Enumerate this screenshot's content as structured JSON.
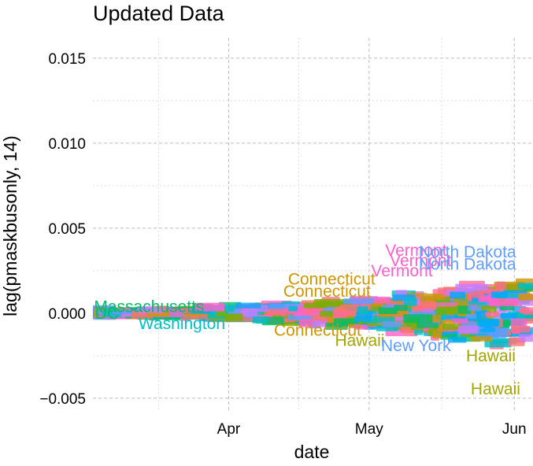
{
  "chart_data": {
    "type": "scatter",
    "title": "Updated Data",
    "xlabel": "date",
    "ylabel": "lag(pmaskbusonly, 14)",
    "x_range": [
      "2020-03-03",
      "2020-06-05"
    ],
    "x_ticks": [
      {
        "date": "2020-04-01",
        "label": "Apr"
      },
      {
        "date": "2020-05-01",
        "label": "May"
      },
      {
        "date": "2020-06-01",
        "label": "Jun"
      }
    ],
    "ylim": [
      -0.0057,
      0.0162
    ],
    "y_ticks": [
      {
        "value": 0.015,
        "label": "0.015"
      },
      {
        "value": 0.01,
        "label": "0.010"
      },
      {
        "value": 0.005,
        "label": "0.005"
      },
      {
        "value": 0.0,
        "label": "0.000"
      },
      {
        "value": -0.005,
        "label": "−0.005"
      }
    ],
    "grid": "dashed",
    "legend": "none",
    "series_colors": [
      "#F8766D",
      "#CD9600",
      "#7CAE00",
      "#00BE67",
      "#00BFC4",
      "#00A9FF",
      "#619CFF",
      "#C77CFF",
      "#FF61CC",
      "#FF6C91"
    ],
    "labels": [
      {
        "text": "Hawaii",
        "date": "2020-05-28",
        "value": -0.00445,
        "color": "#A3A500"
      },
      {
        "text": "Hawaii",
        "date": "2020-05-27",
        "value": -0.0025,
        "color": "#A3A500"
      },
      {
        "text": "Hawaii",
        "date": "2020-04-29",
        "value": -0.0016,
        "color": "#A3A500"
      },
      {
        "text": "Connecticut",
        "date": "2020-04-23",
        "value": 0.002,
        "color": "#CD9600"
      },
      {
        "text": "Connecticut",
        "date": "2020-04-22",
        "value": 0.0013,
        "color": "#CD9600"
      },
      {
        "text": "Connecticut",
        "date": "2020-04-20",
        "value": -0.001,
        "color": "#CD9600"
      },
      {
        "text": "Vermont",
        "date": "2020-05-11",
        "value": 0.0037,
        "color": "#FF61CC"
      },
      {
        "text": "Vermont",
        "date": "2020-05-12",
        "value": 0.0031,
        "color": "#FF61CC"
      },
      {
        "text": "Vermont",
        "date": "2020-05-08",
        "value": 0.0025,
        "color": "#FF61CC"
      },
      {
        "text": "North Dakota",
        "date": "2020-05-22",
        "value": 0.0036,
        "color": "#619CFF"
      },
      {
        "text": "North Dakota",
        "date": "2020-05-22",
        "value": 0.0029,
        "color": "#619CFF"
      },
      {
        "text": "New York",
        "date": "2020-05-11",
        "value": -0.0019,
        "color": "#619CFF"
      },
      {
        "text": "Massachusetts",
        "date": "2020-03-15",
        "value": 0.0004,
        "color": "#00BE67"
      },
      {
        "text": "Washington",
        "date": "2020-03-22",
        "value": -0.0006,
        "color": "#00BFC4"
      },
      {
        "text": "DC",
        "date": "2020-03-03",
        "value": 0.0,
        "color": "#CD9600"
      },
      {
        "text": "DC",
        "date": "2020-03-06",
        "value": 0.0,
        "color": "#00BE67"
      }
    ]
  }
}
